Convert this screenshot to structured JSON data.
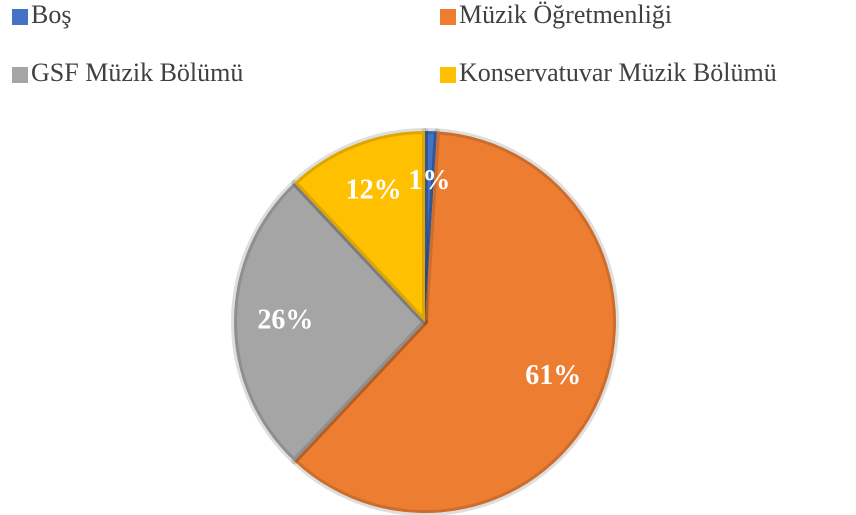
{
  "chart_data": {
    "type": "pie",
    "categories": [
      "Boş",
      "Müzik Öğretmenliği",
      "GSF Müzik Bölümü",
      "Konservatuvar Müzik Bölümü"
    ],
    "values": [
      1,
      61,
      26,
      12
    ],
    "value_labels": [
      "1%",
      "61%",
      "26%",
      "12%"
    ],
    "colors": [
      "#4472c4",
      "#ed7d31",
      "#a5a5a5",
      "#ffc000"
    ],
    "legend": "top"
  }
}
